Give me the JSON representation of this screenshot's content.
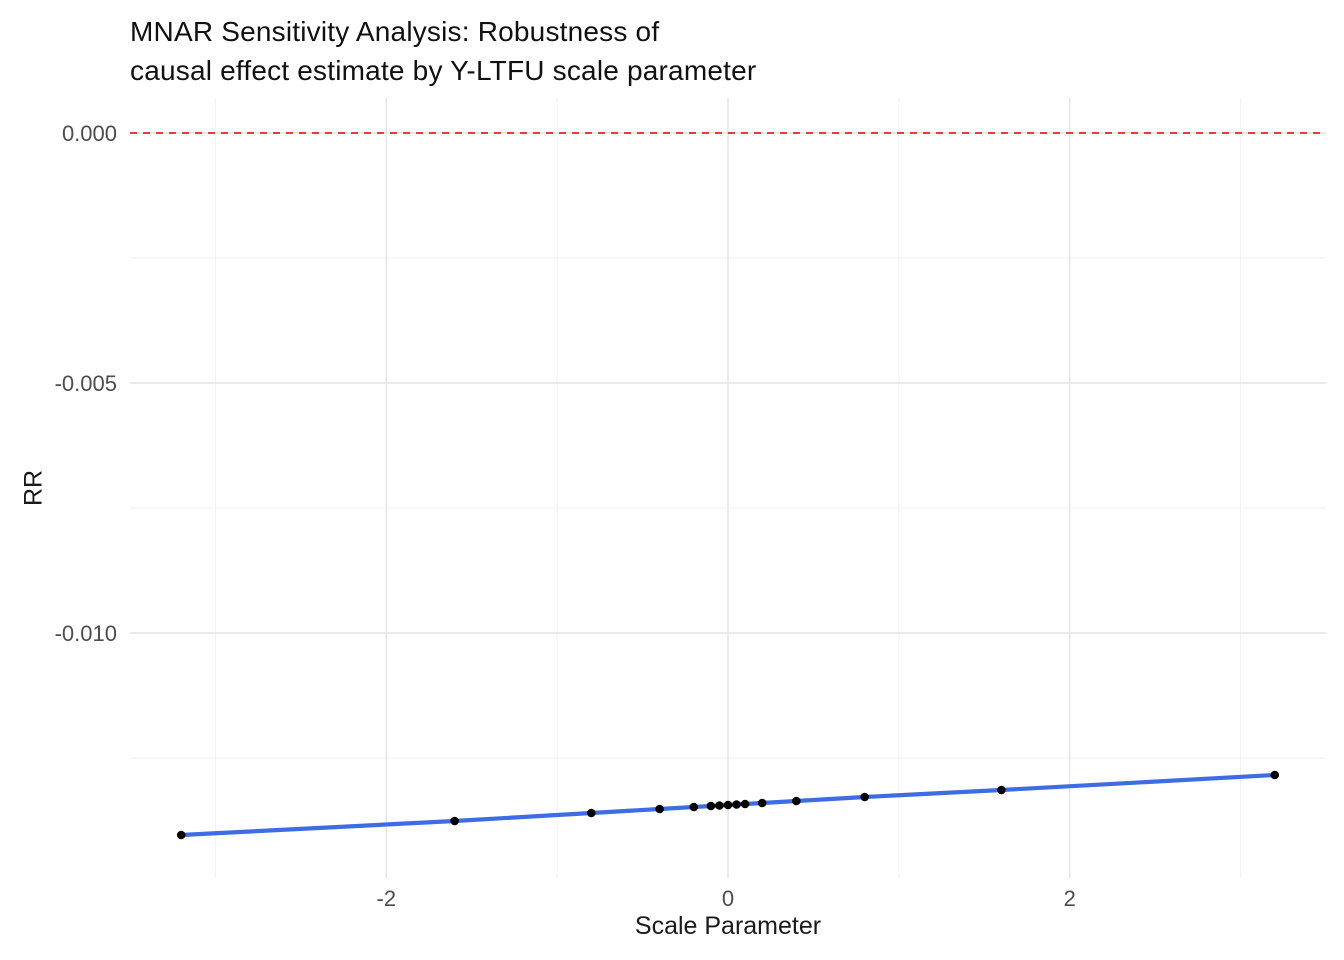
{
  "title": {
    "line1": "MNAR Sensitivity Analysis: Robustness of",
    "line2": "causal effect estimate by Y-LTFU scale parameter"
  },
  "chart_data": {
    "type": "line",
    "title": "MNAR Sensitivity Analysis: Robustness of causal effect estimate by Y-LTFU scale parameter",
    "xlabel": "Scale Parameter",
    "ylabel": "RR",
    "x": [
      -3.2,
      -1.6,
      -0.8,
      -0.4,
      -0.2,
      -0.1,
      -0.05,
      0,
      0.05,
      0.1,
      0.2,
      0.4,
      0.8,
      1.6,
      3.2
    ],
    "y": [
      -0.01404,
      -0.01376,
      -0.0136,
      -0.01352,
      -0.01348,
      -0.01346,
      -0.01345,
      -0.01344,
      -0.01343,
      -0.01342,
      -0.0134,
      -0.01336,
      -0.01328,
      -0.01314,
      -0.01284
    ],
    "xlim": [
      -3.5,
      3.5
    ],
    "ylim": [
      -0.0149,
      0.0007
    ],
    "x_ticks": {
      "values": [
        -2,
        0,
        2
      ],
      "labels": [
        "-2",
        "0",
        "2"
      ]
    },
    "y_ticks": {
      "values": [
        0,
        -0.005,
        -0.01
      ],
      "labels": [
        "0.000",
        "-0.005",
        "-0.010"
      ]
    },
    "x_minor": [
      -3,
      -1,
      1,
      3
    ],
    "y_minor": [
      -0.0025,
      -0.0075,
      -0.0125
    ],
    "reference_line": {
      "y": 0,
      "style": "dashed",
      "color": "#e02424"
    },
    "line_color": "#3e6ce2",
    "point_color": "#000000",
    "grid": true,
    "legend": "none",
    "background": "#ffffff",
    "grid_major_color": "#e4e4e4",
    "grid_minor_color": "#f1f1f1",
    "tick_label_color": "#4d4d4d"
  }
}
